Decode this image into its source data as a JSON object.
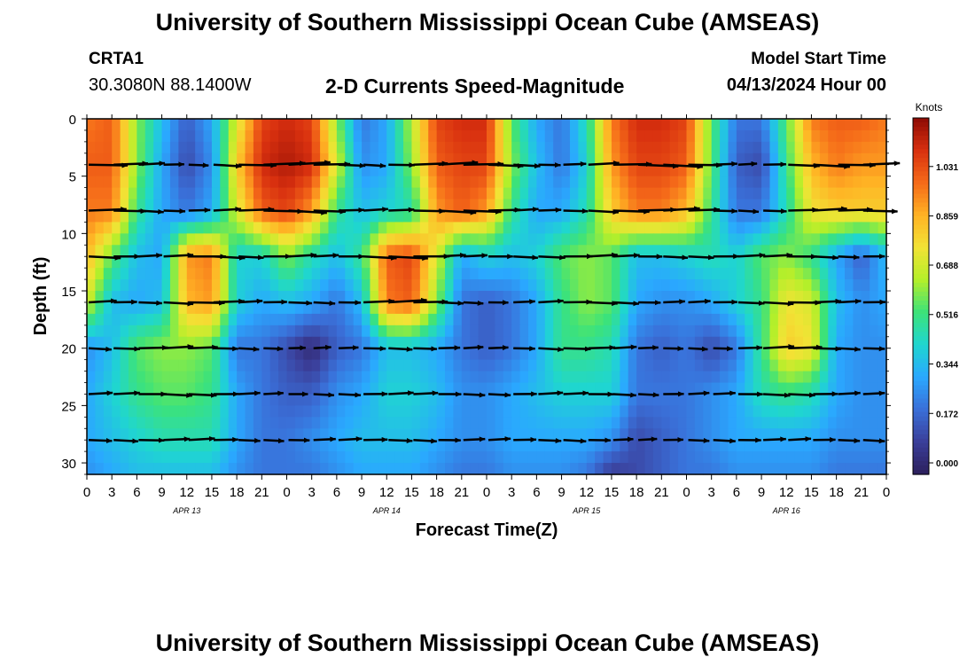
{
  "header": {
    "title": "University of Southern Mississippi Ocean Cube (AMSEAS)",
    "station": "CRTA1",
    "coords": "30.3080N  88.1400W",
    "chart_title": "2-D Currents Speed-Magnitude",
    "model_start_label": "Model Start Time",
    "model_start_value": "04/13/2024 Hour 00"
  },
  "footer": {
    "title": "University of Southern Mississippi Ocean Cube (AMSEAS)"
  },
  "colors": {
    "ramp": [
      "#2c1f5c",
      "#3b3f9a",
      "#3a6fd8",
      "#2aa8ff",
      "#1fd6d0",
      "#3ce27a",
      "#b4ef2a",
      "#f2e335",
      "#ffb224",
      "#f56a19",
      "#d8300f",
      "#8d0a04"
    ]
  },
  "chart_data": {
    "type": "heatmap",
    "title": "2-D Currents Speed-Magnitude",
    "xlabel": "Forecast Time(Z)",
    "ylabel": "Depth (ft)",
    "xlim": [
      0,
      96
    ],
    "ylim": [
      0,
      31
    ],
    "x_ticks": [
      "0",
      "3",
      "6",
      "9",
      "12",
      "15",
      "18",
      "21",
      "0",
      "3",
      "6",
      "9",
      "12",
      "15",
      "18",
      "21",
      "0",
      "3",
      "6",
      "9",
      "12",
      "15",
      "18",
      "21",
      "0",
      "3",
      "6",
      "9",
      "12",
      "15",
      "18",
      "21",
      "0"
    ],
    "y_ticks": [
      0,
      5,
      10,
      15,
      20,
      25,
      30
    ],
    "day_labels": [
      {
        "label": "APR 13",
        "hour": 12
      },
      {
        "label": "APR 14",
        "hour": 36
      },
      {
        "label": "APR 15",
        "hour": 60
      },
      {
        "label": "APR 16",
        "hour": 84
      }
    ],
    "colorbar": {
      "unit": "Knots",
      "ticks": [
        "1.031",
        "0.859",
        "0.688",
        "0.516",
        "0.344",
        "0.172",
        "0.000"
      ],
      "tick_values": [
        1.031,
        0.859,
        0.688,
        0.516,
        0.344,
        0.172,
        0.0
      ],
      "range": [
        -0.04,
        1.2
      ]
    },
    "arrow_depths": [
      4,
      8,
      12,
      16,
      20,
      24,
      28
    ],
    "speed_anchors": [
      {
        "depth": 0,
        "values": [
          0.95,
          1.0,
          0.6,
          0.35,
          0.15,
          0.3,
          0.7,
          1.05,
          1.1,
          1.05,
          0.6,
          0.2,
          0.3,
          0.65,
          1.05,
          1.1,
          1.1,
          0.55,
          0.3,
          0.2,
          0.45,
          0.95,
          1.1,
          1.1,
          1.05,
          0.55,
          0.2,
          0.2,
          0.55,
          0.95,
          1.0,
          1.0,
          0.95
        ]
      },
      {
        "depth": 4,
        "values": [
          1.0,
          1.0,
          0.6,
          0.3,
          0.1,
          0.25,
          0.8,
          1.1,
          1.15,
          1.1,
          0.7,
          0.25,
          0.3,
          0.6,
          1.0,
          1.05,
          1.05,
          0.6,
          0.35,
          0.2,
          0.4,
          0.9,
          1.05,
          1.05,
          1.0,
          0.55,
          0.15,
          0.1,
          0.5,
          0.85,
          0.95,
          0.9,
          0.9
        ]
      },
      {
        "depth": 8,
        "values": [
          0.95,
          0.95,
          0.5,
          0.3,
          0.2,
          0.3,
          0.7,
          1.0,
          1.05,
          0.9,
          0.5,
          0.35,
          0.4,
          0.45,
          0.9,
          1.0,
          0.9,
          0.5,
          0.3,
          0.3,
          0.45,
          0.8,
          0.95,
          0.95,
          0.85,
          0.5,
          0.2,
          0.2,
          0.45,
          0.75,
          0.8,
          0.8,
          0.8
        ]
      },
      {
        "depth": 12,
        "values": [
          0.85,
          0.55,
          0.35,
          0.3,
          0.9,
          0.95,
          0.4,
          0.4,
          0.6,
          0.45,
          0.35,
          0.5,
          1.0,
          1.05,
          0.7,
          0.3,
          0.4,
          0.35,
          0.4,
          0.55,
          0.6,
          0.55,
          0.35,
          0.35,
          0.4,
          0.45,
          0.4,
          0.55,
          0.6,
          0.5,
          0.3,
          0.15,
          0.35
        ]
      },
      {
        "depth": 16,
        "values": [
          0.7,
          0.35,
          0.3,
          0.35,
          0.85,
          0.9,
          0.4,
          0.3,
          0.35,
          0.3,
          0.2,
          0.35,
          0.95,
          1.0,
          0.6,
          0.2,
          0.15,
          0.2,
          0.3,
          0.5,
          0.6,
          0.55,
          0.3,
          0.25,
          0.25,
          0.3,
          0.4,
          0.5,
          0.75,
          0.7,
          0.35,
          0.25,
          0.3
        ]
      },
      {
        "depth": 20,
        "values": [
          0.25,
          0.35,
          0.55,
          0.6,
          0.6,
          0.55,
          0.2,
          0.2,
          0.1,
          0.0,
          0.15,
          0.2,
          0.35,
          0.35,
          0.3,
          0.2,
          0.15,
          0.2,
          0.3,
          0.5,
          0.5,
          0.45,
          0.2,
          0.15,
          0.2,
          0.1,
          0.2,
          0.5,
          0.8,
          0.75,
          0.3,
          0.25,
          0.25
        ]
      },
      {
        "depth": 24,
        "values": [
          0.3,
          0.4,
          0.5,
          0.55,
          0.55,
          0.5,
          0.3,
          0.2,
          0.15,
          0.15,
          0.25,
          0.3,
          0.4,
          0.4,
          0.35,
          0.25,
          0.25,
          0.3,
          0.35,
          0.4,
          0.4,
          0.4,
          0.2,
          0.2,
          0.2,
          0.25,
          0.3,
          0.45,
          0.5,
          0.45,
          0.3,
          0.25,
          0.25
        ]
      },
      {
        "depth": 28,
        "values": [
          0.3,
          0.35,
          0.4,
          0.45,
          0.45,
          0.45,
          0.3,
          0.2,
          0.2,
          0.25,
          0.3,
          0.35,
          0.35,
          0.35,
          0.3,
          0.25,
          0.25,
          0.3,
          0.3,
          0.3,
          0.3,
          0.25,
          0.1,
          0.15,
          0.2,
          0.25,
          0.3,
          0.3,
          0.3,
          0.3,
          0.25,
          0.25,
          0.25
        ]
      },
      {
        "depth": 31,
        "values": [
          0.25,
          0.3,
          0.35,
          0.35,
          0.35,
          0.35,
          0.25,
          0.2,
          0.2,
          0.2,
          0.25,
          0.3,
          0.3,
          0.3,
          0.25,
          0.2,
          0.2,
          0.25,
          0.25,
          0.25,
          0.2,
          0.05,
          0.1,
          0.15,
          0.2,
          0.2,
          0.25,
          0.25,
          0.25,
          0.25,
          0.2,
          0.2,
          0.2
        ]
      }
    ]
  }
}
